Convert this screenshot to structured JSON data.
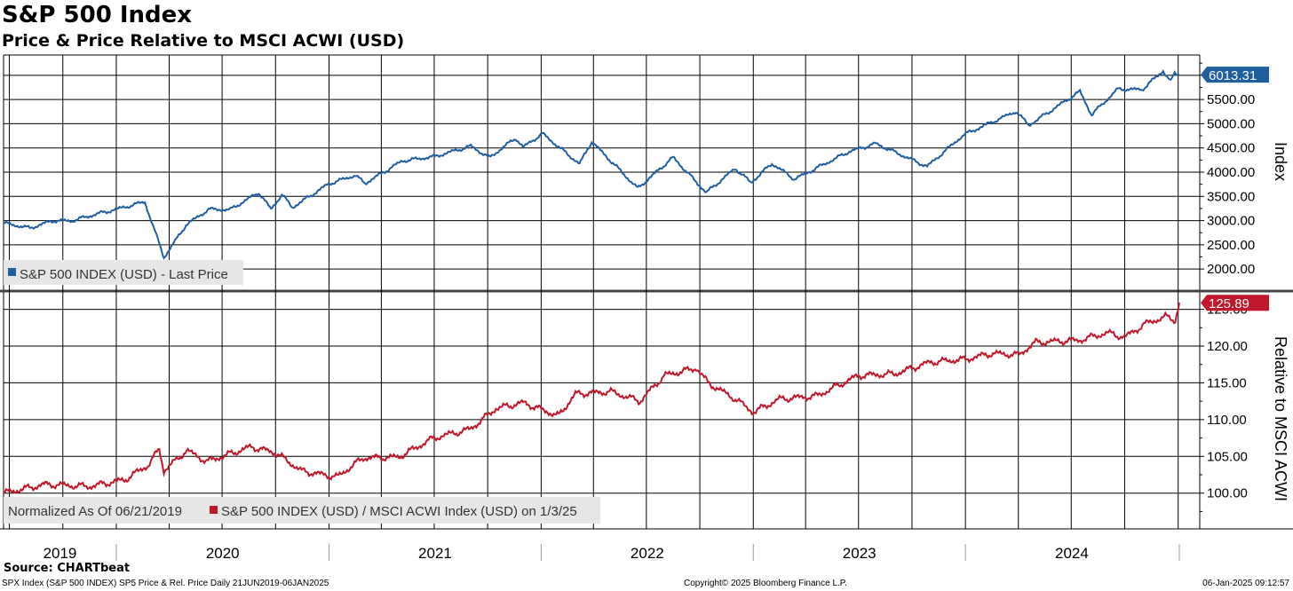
{
  "header": {
    "title": "S&P 500 Index",
    "subtitle": "Price & Price Relative to MSCI ACWI (USD)"
  },
  "footer": {
    "source": "Source: CHARTbeat",
    "left": "SPX Index (S&P 500 INDEX) SP5 Price & Rel. Price  Daily 21JUN2019-06JAN2025",
    "center": "Copyright© 2025 Bloomberg Finance L.P.",
    "right": "06-Jan-2025 09:12:57"
  },
  "colors": {
    "price": "#1f5fa0",
    "relative": "#c0182a",
    "grid": "#000000"
  },
  "chart_data": [
    {
      "type": "line",
      "ylabel": "Index",
      "ylim": [
        1600,
        6400
      ],
      "yticks": [
        "2000.00",
        "2500.00",
        "3000.00",
        "3500.00",
        "4000.00",
        "4500.00",
        "5000.00",
        "5500.00"
      ],
      "last_value_label": "6013.31",
      "legend": "S&P 500 INDEX (USD) - Last Price",
      "legend_position": "bottom-left",
      "x_years": [
        "2019",
        "2020",
        "2021",
        "2022",
        "2023",
        "2024"
      ],
      "series": [
        {
          "name": "S&P 500 INDEX (USD) - Last Price",
          "points": [
            [
              "2019-06-21",
              2950
            ],
            [
              "2019-08-05",
              2845
            ],
            [
              "2019-09-15",
              3000
            ],
            [
              "2019-10-15",
              2990
            ],
            [
              "2019-11-30",
              3140
            ],
            [
              "2019-12-31",
              3230
            ],
            [
              "2020-02-19",
              3386
            ],
            [
              "2020-03-23",
              2237
            ],
            [
              "2020-04-30",
              2910
            ],
            [
              "2020-06-08",
              3232
            ],
            [
              "2020-07-15",
              3225
            ],
            [
              "2020-09-02",
              3580
            ],
            [
              "2020-09-23",
              3236
            ],
            [
              "2020-10-12",
              3534
            ],
            [
              "2020-10-30",
              3270
            ],
            [
              "2020-12-31",
              3756
            ],
            [
              "2021-02-15",
              3934
            ],
            [
              "2021-03-04",
              3768
            ],
            [
              "2021-05-07",
              4232
            ],
            [
              "2021-07-01",
              4320
            ],
            [
              "2021-09-02",
              4537
            ],
            [
              "2021-10-04",
              4300
            ],
            [
              "2021-11-18",
              4704
            ],
            [
              "2021-12-01",
              4513
            ],
            [
              "2022-01-03",
              4796
            ],
            [
              "2022-03-08",
              4170
            ],
            [
              "2022-03-29",
              4631
            ],
            [
              "2022-06-16",
              3666
            ],
            [
              "2022-08-16",
              4305
            ],
            [
              "2022-10-12",
              3577
            ],
            [
              "2022-12-01",
              4076
            ],
            [
              "2022-12-28",
              3783
            ],
            [
              "2023-02-02",
              4179
            ],
            [
              "2023-03-13",
              3855
            ],
            [
              "2023-06-15",
              4425
            ],
            [
              "2023-07-31",
              4589
            ],
            [
              "2023-10-27",
              4117
            ],
            [
              "2023-12-29",
              4770
            ],
            [
              "2024-03-28",
              5254
            ],
            [
              "2024-04-19",
              4967
            ],
            [
              "2024-07-16",
              5667
            ],
            [
              "2024-08-05",
              5186
            ],
            [
              "2024-09-19",
              5713
            ],
            [
              "2024-10-31",
              5705
            ],
            [
              "2024-12-06",
              6090
            ],
            [
              "2024-12-19",
              5867
            ],
            [
              "2024-12-26",
              6037
            ],
            [
              "2025-01-03",
              6013
            ]
          ]
        }
      ]
    },
    {
      "type": "line",
      "ylabel": "Relative to MSCI ACWI",
      "ylim": [
        95.5,
        127.0
      ],
      "yticks": [
        "100.00",
        "105.00",
        "110.00",
        "115.00",
        "120.00",
        "125.00"
      ],
      "last_value_label": "125.89",
      "legend": "S&P 500 INDEX (USD) / MSCI ACWI Index (USD) on 1/3/25",
      "note": "Normalized As Of 06/21/2019",
      "legend_position": "bottom-left",
      "series": [
        {
          "name": "S&P 500 INDEX (USD) / MSCI ACWI Index (USD) on 1/3/25",
          "points": [
            [
              "2019-06-21",
              100.0
            ],
            [
              "2019-09-01",
              101.2
            ],
            [
              "2019-11-15",
              100.9
            ],
            [
              "2020-01-15",
              101.8
            ],
            [
              "2020-02-25",
              103.8
            ],
            [
              "2020-03-15",
              106.0
            ],
            [
              "2020-03-23",
              103.0
            ],
            [
              "2020-05-01",
              105.8
            ],
            [
              "2020-06-05",
              104.3
            ],
            [
              "2020-08-20",
              106.3
            ],
            [
              "2020-10-01",
              105.5
            ],
            [
              "2020-11-15",
              103.0
            ],
            [
              "2021-01-15",
              102.2
            ],
            [
              "2021-03-01",
              104.8
            ],
            [
              "2021-05-01",
              104.9
            ],
            [
              "2021-06-30",
              107.5
            ],
            [
              "2021-09-01",
              108.7
            ],
            [
              "2021-10-15",
              111.5
            ],
            [
              "2021-12-01",
              112.3
            ],
            [
              "2022-01-31",
              110.5
            ],
            [
              "2022-03-01",
              113.5
            ],
            [
              "2022-05-01",
              113.8
            ],
            [
              "2022-06-20",
              112.5
            ],
            [
              "2022-08-01",
              116.0
            ],
            [
              "2022-09-25",
              117.0
            ],
            [
              "2022-10-15",
              115.0
            ],
            [
              "2022-12-01",
              112.8
            ],
            [
              "2023-01-01",
              111.0
            ],
            [
              "2023-02-15",
              112.8
            ],
            [
              "2023-04-20",
              113.2
            ],
            [
              "2023-07-01",
              116.0
            ],
            [
              "2023-09-01",
              116.2
            ],
            [
              "2023-11-01",
              117.8
            ],
            [
              "2024-01-01",
              118.2
            ],
            [
              "2024-02-15",
              119.0
            ],
            [
              "2024-04-01",
              118.8
            ],
            [
              "2024-05-01",
              120.5
            ],
            [
              "2024-07-15",
              120.8
            ],
            [
              "2024-09-01",
              121.8
            ],
            [
              "2024-10-01",
              121.2
            ],
            [
              "2024-11-05",
              123.0
            ],
            [
              "2024-12-10",
              124.0
            ],
            [
              "2024-12-27",
              123.5
            ],
            [
              "2025-01-03",
              125.89
            ]
          ]
        }
      ]
    }
  ]
}
